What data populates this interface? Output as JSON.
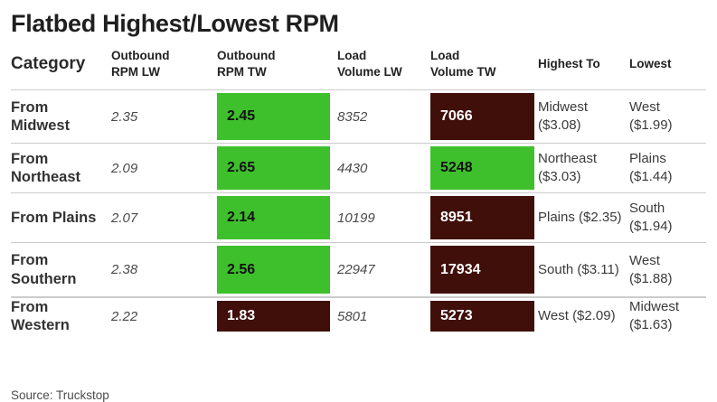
{
  "title": "Flatbed Highest/Lowest RPM",
  "source": "Source: Truckstop",
  "colors": {
    "highlight_green": "#3ec02c",
    "highlight_dark_red": "#400f0a",
    "row_line": "#cccccc"
  },
  "table": {
    "headers": {
      "category": "Category",
      "outbound_rpm_lw": "Outbound RPM LW",
      "outbound_rpm_tw": "Outbound RPM TW",
      "load_volume_lw": "Load Volume LW",
      "load_volume_tw": "Load Volume TW",
      "highest_to": "Highest To",
      "lowest": "Lowest"
    },
    "rows": [
      {
        "category": "From Midwest",
        "outbound_rpm_lw": "2.35",
        "outbound_rpm_tw": "2.45",
        "outbound_rpm_tw_highlight": "green",
        "load_volume_lw": "8352",
        "load_volume_tw": "7066",
        "load_volume_tw_highlight": "dark_red",
        "highest_to": "Midwest ($3.08)",
        "lowest": "West ($1.99)"
      },
      {
        "category": "From Northeast",
        "outbound_rpm_lw": "2.09",
        "outbound_rpm_tw": "2.65",
        "outbound_rpm_tw_highlight": "green",
        "load_volume_lw": "4430",
        "load_volume_tw": "5248",
        "load_volume_tw_highlight": "green",
        "highest_to": "Northeast ($3.03)",
        "lowest": "Plains ($1.44)"
      },
      {
        "category": "From Plains",
        "outbound_rpm_lw": "2.07",
        "outbound_rpm_tw": "2.14",
        "outbound_rpm_tw_highlight": "green",
        "load_volume_lw": "10199",
        "load_volume_tw": "8951",
        "load_volume_tw_highlight": "dark_red",
        "highest_to": "Plains ($2.35)",
        "lowest": "South ($1.94)"
      },
      {
        "category": "From Southern",
        "outbound_rpm_lw": "2.38",
        "outbound_rpm_tw": "2.56",
        "outbound_rpm_tw_highlight": "green",
        "load_volume_lw": "22947",
        "load_volume_tw": "17934",
        "load_volume_tw_highlight": "dark_red",
        "highest_to": "South ($3.11)",
        "lowest": "West ($1.88)"
      },
      {
        "category": "From Western",
        "outbound_rpm_lw": "2.22",
        "outbound_rpm_tw": "1.83",
        "outbound_rpm_tw_highlight": "dark_red",
        "load_volume_lw": "5801",
        "load_volume_tw": "5273",
        "load_volume_tw_highlight": "dark_red",
        "highest_to": "West ($2.09)",
        "lowest": "Midwest ($1.63)"
      }
    ]
  },
  "chart_data": {
    "type": "table",
    "title": "Flatbed Highest/Lowest RPM",
    "columns": [
      "Category",
      "Outbound RPM LW",
      "Outbound RPM TW",
      "Load Volume LW",
      "Load Volume TW",
      "Highest To",
      "Lowest"
    ],
    "rows": [
      [
        "From Midwest",
        2.35,
        2.45,
        8352,
        7066,
        "Midwest ($3.08)",
        "West ($1.99)"
      ],
      [
        "From Northeast",
        2.09,
        2.65,
        4430,
        5248,
        "Northeast ($3.03)",
        "Plains ($1.44)"
      ],
      [
        "From Plains",
        2.07,
        2.14,
        10199,
        8951,
        "Plains ($2.35)",
        "South ($1.94)"
      ],
      [
        "From Southern",
        2.38,
        2.56,
        22947,
        17934,
        "South ($3.11)",
        "West ($1.88)"
      ],
      [
        "From Western",
        2.22,
        1.83,
        5801,
        5273,
        "West ($2.09)",
        "Midwest ($1.63)"
      ]
    ],
    "highlighted_cells": {
      "green": [
        [
          "From Midwest",
          "Outbound RPM TW"
        ],
        [
          "From Northeast",
          "Outbound RPM TW"
        ],
        [
          "From Northeast",
          "Load Volume TW"
        ],
        [
          "From Plains",
          "Outbound RPM TW"
        ],
        [
          "From Southern",
          "Outbound RPM TW"
        ]
      ],
      "dark_red": [
        [
          "From Midwest",
          "Load Volume TW"
        ],
        [
          "From Plains",
          "Load Volume TW"
        ],
        [
          "From Southern",
          "Load Volume TW"
        ],
        [
          "From Western",
          "Outbound RPM TW"
        ],
        [
          "From Western",
          "Load Volume TW"
        ]
      ]
    },
    "source": "Source: Truckstop"
  }
}
